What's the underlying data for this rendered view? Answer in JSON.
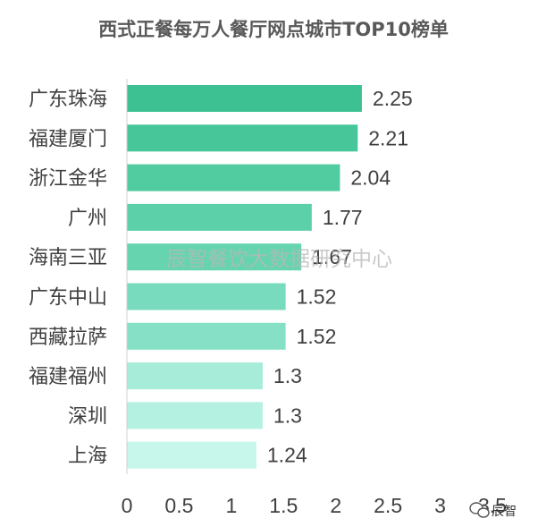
{
  "chart_data": {
    "type": "bar",
    "orientation": "horizontal",
    "title": "西式正餐每万人餐厅网点城市TOP10榜单",
    "categories": [
      "广东珠海",
      "福建厦门",
      "浙江金华",
      "广州",
      "海南三亚",
      "广东中山",
      "西藏拉萨",
      "福建福州",
      "深圳",
      "上海"
    ],
    "values": [
      2.25,
      2.21,
      2.04,
      1.77,
      1.67,
      1.52,
      1.52,
      1.3,
      1.3,
      1.24
    ],
    "value_labels": [
      "2.25",
      "2.21",
      "2.04",
      "1.77",
      "1.67",
      "1.52",
      "1.52",
      "1.3",
      "1.3",
      "1.24"
    ],
    "x_ticks": [
      "0",
      "0.5",
      "1",
      "1.5",
      "2",
      "2.5",
      "3",
      "3.5"
    ],
    "xlim": [
      0,
      3.5
    ],
    "bar_colors": [
      "#3ec192",
      "#47c799",
      "#51cba0",
      "#5cd0a8",
      "#66d4af",
      "#78dbbd",
      "#86e0c6",
      "#a6ecd8",
      "#b5f1e0",
      "#c6f7ea"
    ],
    "grid": false,
    "legend": "none"
  },
  "watermark": "辰智餐饮大数据研究中心",
  "logo": {
    "text": "辰智",
    "icon": "wechat-icon"
  }
}
